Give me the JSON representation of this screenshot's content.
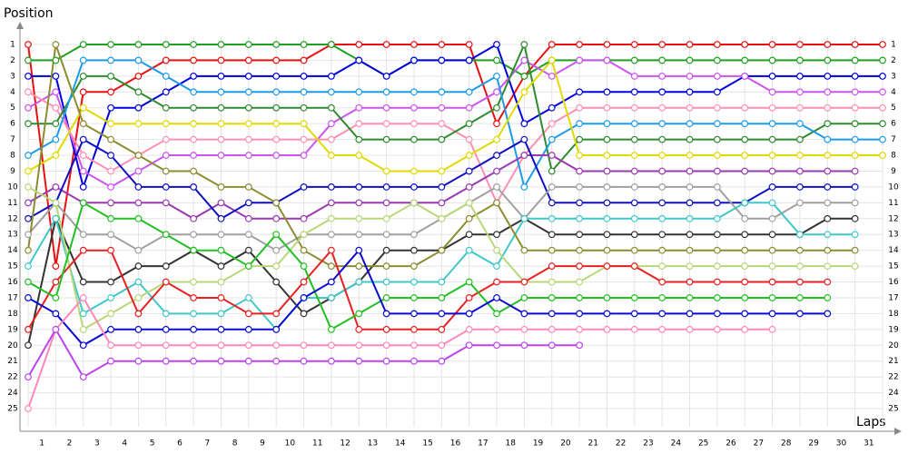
{
  "chart_data": {
    "type": "line",
    "ylabel": "Position",
    "xlabel": "Laps",
    "x": [
      0,
      1,
      2,
      3,
      4,
      5,
      6,
      7,
      8,
      9,
      10,
      11,
      12,
      13,
      14,
      15,
      16,
      17,
      18,
      19,
      20,
      21,
      22,
      23,
      24,
      25,
      26,
      27,
      28,
      29,
      30,
      31
    ],
    "xlim": [
      0,
      31
    ],
    "xticks": [
      1,
      2,
      3,
      4,
      5,
      6,
      7,
      8,
      9,
      10,
      11,
      12,
      13,
      14,
      15,
      16,
      17,
      18,
      19,
      20,
      21,
      22,
      23,
      24,
      25,
      26,
      27,
      28,
      29,
      30,
      31
    ],
    "ylim": [
      1,
      24
    ],
    "yreversed": true,
    "yticks": [
      1,
      2,
      3,
      4,
      5,
      6,
      7,
      8,
      9,
      10,
      11,
      12,
      13,
      14,
      15,
      16,
      17,
      18,
      19,
      20,
      21,
      22,
      {
        "value": 23,
        "label": "24"
      },
      {
        "value": 24,
        "label": "25"
      }
    ],
    "grid": true,
    "series": [
      {
        "color": "#e81010",
        "values": [
          1,
          15,
          4,
          4,
          3,
          2,
          2,
          2,
          2,
          2,
          2,
          1,
          1,
          1,
          1,
          1,
          1,
          6,
          3,
          1,
          1,
          1,
          1,
          1,
          1,
          1,
          1,
          1,
          1,
          1,
          1,
          1
        ]
      },
      {
        "color": "#1fa01f",
        "values": [
          2,
          2,
          1,
          1,
          1,
          1,
          1,
          1,
          1,
          1,
          1,
          1,
          2,
          3,
          2,
          2,
          2,
          2,
          3,
          2,
          2,
          2,
          2,
          2,
          2,
          2,
          2,
          2,
          2,
          2,
          2,
          2
        ]
      },
      {
        "color": "#0000dd",
        "values": [
          3,
          3,
          10,
          5,
          5,
          4,
          3,
          3,
          3,
          3,
          3,
          3,
          2,
          3,
          2,
          2,
          2,
          1,
          6,
          5,
          4,
          4,
          4,
          4,
          4,
          4,
          3,
          3,
          3,
          3,
          3,
          3
        ]
      },
      {
        "color": "#cc55ee",
        "values": [
          5,
          4,
          9,
          10,
          9,
          8,
          8,
          8,
          8,
          8,
          8,
          6,
          5,
          5,
          5,
          5,
          5,
          4,
          2,
          3,
          2,
          2,
          3,
          3,
          3,
          3,
          3,
          4,
          4,
          4,
          4,
          4
        ]
      },
      {
        "color": "#ff90b0",
        "values": [
          4,
          5,
          8,
          9,
          8,
          7,
          7,
          7,
          7,
          7,
          7,
          7,
          6,
          6,
          6,
          6,
          7,
          11,
          8,
          6,
          5,
          5,
          5,
          5,
          5,
          5,
          5,
          5,
          5,
          5,
          5,
          5
        ]
      },
      {
        "color": "#2e8b2e",
        "values": [
          6,
          6,
          3,
          3,
          4,
          5,
          5,
          5,
          5,
          5,
          5,
          5,
          7,
          7,
          7,
          7,
          6,
          5,
          1,
          9,
          7,
          7,
          7,
          7,
          7,
          7,
          7,
          7,
          7,
          6,
          6,
          6
        ]
      },
      {
        "color": "#1e9be8",
        "values": [
          8,
          7,
          2,
          2,
          2,
          3,
          4,
          4,
          4,
          4,
          4,
          4,
          4,
          4,
          4,
          4,
          4,
          3,
          10,
          7,
          6,
          6,
          6,
          6,
          6,
          6,
          6,
          6,
          6,
          7,
          7,
          7
        ]
      },
      {
        "color": "#e0da00",
        "values": [
          9,
          8,
          5,
          6,
          6,
          6,
          6,
          6,
          6,
          6,
          6,
          8,
          8,
          9,
          9,
          9,
          8,
          7,
          4,
          2,
          8,
          8,
          8,
          8,
          8,
          8,
          8,
          8,
          8,
          8,
          8,
          8
        ]
      },
      {
        "color": "#9a3ab0",
        "values": [
          11,
          10,
          11,
          11,
          11,
          11,
          12,
          11,
          12,
          12,
          12,
          11,
          11,
          11,
          11,
          11,
          10,
          9,
          8,
          8,
          9,
          9,
          9,
          9,
          9,
          9,
          9,
          9,
          9,
          9,
          9,
          null
        ]
      },
      {
        "color": "#1010c0",
        "values": [
          12,
          11,
          7,
          8,
          10,
          10,
          10,
          12,
          11,
          11,
          10,
          10,
          10,
          10,
          10,
          10,
          9,
          8,
          7,
          11,
          11,
          11,
          11,
          11,
          11,
          11,
          11,
          10,
          10,
          10,
          10,
          null
        ]
      },
      {
        "color": "#a0a0a0",
        "values": [
          13,
          11,
          13,
          13,
          14,
          13,
          13,
          13,
          13,
          14,
          13,
          13,
          13,
          13,
          13,
          12,
          11,
          10,
          12,
          10,
          10,
          10,
          10,
          10,
          10,
          10,
          12,
          12,
          11,
          11,
          11,
          null
        ]
      },
      {
        "color": "#333333",
        "values": [
          20,
          12,
          16,
          16,
          15,
          15,
          14,
          15,
          14,
          16,
          18,
          17,
          16,
          14,
          14,
          14,
          13,
          13,
          12,
          13,
          13,
          13,
          13,
          13,
          13,
          13,
          13,
          13,
          13,
          12,
          12,
          null
        ]
      },
      {
        "color": "#40c8c8",
        "values": [
          15,
          12,
          18,
          17,
          16,
          18,
          18,
          18,
          17,
          19,
          17,
          17,
          16,
          16,
          16,
          16,
          14,
          15,
          12,
          12,
          12,
          12,
          12,
          12,
          12,
          12,
          11,
          11,
          13,
          13,
          13,
          null
        ]
      },
      {
        "color": "#8c8c30",
        "values": [
          14,
          1,
          6,
          7,
          8,
          9,
          9,
          10,
          10,
          11,
          14,
          15,
          15,
          15,
          15,
          14,
          12,
          11,
          14,
          14,
          14,
          14,
          14,
          14,
          14,
          14,
          14,
          14,
          14,
          14,
          14,
          null
        ]
      },
      {
        "color": "#b8d878",
        "values": [
          10,
          11,
          19,
          18,
          17,
          16,
          16,
          16,
          15,
          15,
          13,
          12,
          12,
          12,
          11,
          12,
          11,
          14,
          16,
          16,
          16,
          15,
          15,
          15,
          15,
          15,
          15,
          15,
          15,
          15,
          15,
          null
        ]
      },
      {
        "color": "#e82020",
        "values": [
          19,
          16,
          14,
          14,
          18,
          16,
          17,
          17,
          18,
          18,
          16,
          14,
          19,
          19,
          19,
          19,
          17,
          16,
          16,
          15,
          15,
          15,
          15,
          16,
          16,
          16,
          16,
          16,
          16,
          16,
          null,
          null
        ]
      },
      {
        "color": "#22c022",
        "values": [
          16,
          17,
          11,
          12,
          12,
          13,
          14,
          14,
          15,
          13,
          15,
          19,
          18,
          17,
          17,
          17,
          16,
          18,
          17,
          17,
          17,
          17,
          17,
          17,
          17,
          17,
          17,
          17,
          17,
          17,
          null,
          null
        ]
      },
      {
        "color": "#0a0ad0",
        "values": [
          17,
          18,
          20,
          19,
          19,
          19,
          19,
          19,
          19,
          19,
          17,
          16,
          14,
          18,
          18,
          18,
          18,
          17,
          18,
          18,
          18,
          18,
          18,
          18,
          18,
          18,
          18,
          18,
          18,
          18,
          null,
          null
        ]
      },
      {
        "color": "#ff88bb",
        "values": [
          24,
          19,
          17,
          20,
          20,
          20,
          20,
          20,
          20,
          20,
          20,
          20,
          20,
          20,
          20,
          20,
          19,
          19,
          19,
          19,
          19,
          19,
          19,
          19,
          19,
          19,
          19,
          19,
          null,
          null,
          null,
          null
        ]
      },
      {
        "color": "#bb44ee",
        "values": [
          22,
          19,
          22,
          21,
          21,
          21,
          21,
          21,
          21,
          21,
          21,
          21,
          21,
          21,
          21,
          21,
          20,
          20,
          20,
          20,
          20,
          null,
          null,
          null,
          null,
          null,
          null,
          null,
          null,
          null,
          null,
          null
        ]
      }
    ]
  }
}
